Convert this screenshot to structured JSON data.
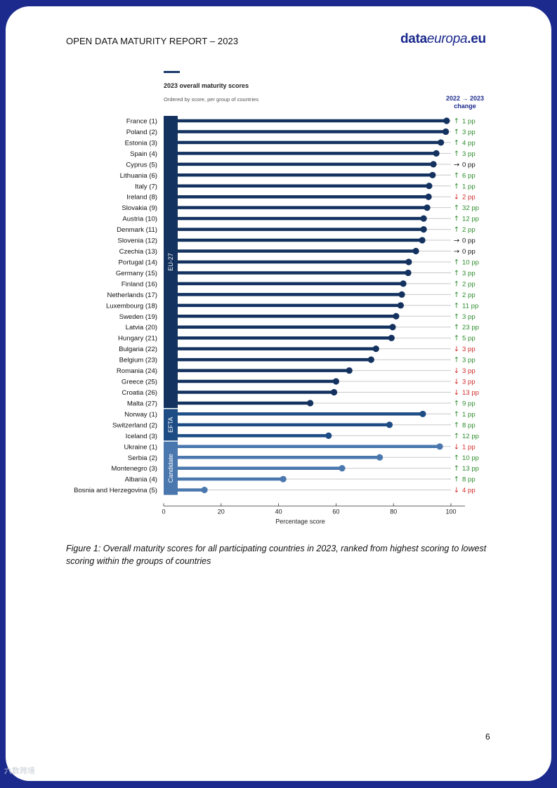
{
  "header": {
    "title": "OPEN DATA MATURITY REPORT – 2023",
    "logo_left": "data",
    "logo_mid": "europa",
    "logo_right": ".eu"
  },
  "chart_data": {
    "type": "bar",
    "title": "2023 overall maturity scores",
    "subtitle": "Ordered by score, per group of countries",
    "change_header": "2022 → 2023",
    "change_header_2": "change",
    "xlabel": "Percentage score",
    "xlim": [
      0,
      100
    ],
    "xticks": [
      0,
      20,
      40,
      60,
      80,
      100
    ],
    "groups": [
      {
        "name": "EU-27",
        "color": "#13325f",
        "countries": [
          {
            "label": "France (1)",
            "value": 98.5,
            "dir": "up",
            "change": "1 pp"
          },
          {
            "label": "Poland (2)",
            "value": 98.2,
            "dir": "up",
            "change": "3 pp"
          },
          {
            "label": "Estonia (3)",
            "value": 96.5,
            "dir": "up",
            "change": "4 pp"
          },
          {
            "label": "Spain (4)",
            "value": 94.9,
            "dir": "up",
            "change": "3 pp"
          },
          {
            "label": "Cyprus (5)",
            "value": 93.9,
            "dir": "flat",
            "change": "0 pp"
          },
          {
            "label": "Lithuania (6)",
            "value": 93.6,
            "dir": "up",
            "change": "6 pp"
          },
          {
            "label": "Italy (7)",
            "value": 92.4,
            "dir": "up",
            "change": "1 pp"
          },
          {
            "label": "Ireland (8)",
            "value": 92.2,
            "dir": "down",
            "change": "2 pp"
          },
          {
            "label": "Slovakia (9)",
            "value": 91.7,
            "dir": "up",
            "change": "32 pp"
          },
          {
            "label": "Austria (10)",
            "value": 90.5,
            "dir": "up",
            "change": "12 pp"
          },
          {
            "label": "Denmark (11)",
            "value": 90.5,
            "dir": "up",
            "change": "2 pp"
          },
          {
            "label": "Slovenia (12)",
            "value": 90.0,
            "dir": "flat",
            "change": "0 pp"
          },
          {
            "label": "Czechia (13)",
            "value": 87.8,
            "dir": "flat",
            "change": "0 pp"
          },
          {
            "label": "Portugal (14)",
            "value": 85.3,
            "dir": "up",
            "change": "10 pp"
          },
          {
            "label": "Germany (15)",
            "value": 85.1,
            "dir": "up",
            "change": "3 pp"
          },
          {
            "label": "Finland (16)",
            "value": 83.4,
            "dir": "up",
            "change": "2 pp"
          },
          {
            "label": "Netherlands (17)",
            "value": 82.9,
            "dir": "up",
            "change": "2 pp"
          },
          {
            "label": "Luxembourg (18)",
            "value": 82.5,
            "dir": "up",
            "change": "11 pp"
          },
          {
            "label": "Sweden (19)",
            "value": 80.9,
            "dir": "up",
            "change": "3 pp"
          },
          {
            "label": "Latvia (20)",
            "value": 79.7,
            "dir": "up",
            "change": "23 pp"
          },
          {
            "label": "Hungary (21)",
            "value": 79.3,
            "dir": "up",
            "change": "5 pp"
          },
          {
            "label": "Bulgaria (22)",
            "value": 73.9,
            "dir": "down",
            "change": "3 pp"
          },
          {
            "label": "Belgium (23)",
            "value": 72.2,
            "dir": "up",
            "change": "3 pp"
          },
          {
            "label": "Romania (24)",
            "value": 64.6,
            "dir": "down",
            "change": "3 pp"
          },
          {
            "label": "Greece (25)",
            "value": 60.0,
            "dir": "down",
            "change": "3 pp"
          },
          {
            "label": "Croatia (26)",
            "value": 59.3,
            "dir": "down",
            "change": "13 pp"
          },
          {
            "label": "Malta (27)",
            "value": 51.0,
            "dir": "up",
            "change": "9 pp"
          }
        ]
      },
      {
        "name": "EFTA",
        "color": "#1d4c85",
        "countries": [
          {
            "label": "Norway (1)",
            "value": 90.2,
            "dir": "up",
            "change": "1 pp"
          },
          {
            "label": "Switzerland (2)",
            "value": 78.6,
            "dir": "up",
            "change": "8 pp"
          },
          {
            "label": "Iceland (3)",
            "value": 57.4,
            "dir": "up",
            "change": "12 pp"
          }
        ]
      },
      {
        "name": "Candidate",
        "color": "#4a77ad",
        "countries": [
          {
            "label": "Ukraine (1)",
            "value": 96.1,
            "dir": "down",
            "change": "1 pp"
          },
          {
            "label": "Serbia (2)",
            "value": 75.2,
            "dir": "up",
            "change": "10 pp"
          },
          {
            "label": "Montenegro (3)",
            "value": 62.1,
            "dir": "up",
            "change": "13 pp"
          },
          {
            "label": "Albania (4)",
            "value": 41.6,
            "dir": "up",
            "change": "8 pp"
          },
          {
            "label": "Bosnia and Herzegovina (5)",
            "value": 14.2,
            "dir": "down",
            "change": "4 pp"
          }
        ]
      }
    ],
    "colors": {
      "up": "#2e8b2e",
      "down": "#d22b2b",
      "flat": "#111111",
      "track": "#c8c8c8"
    }
  },
  "caption": "Figure 1: Overall maturity scores for all participating countries in 2023, ranked from highest scoring to lowest scoring within the groups of countries",
  "page_number": "6",
  "watermark": "六数跨境"
}
